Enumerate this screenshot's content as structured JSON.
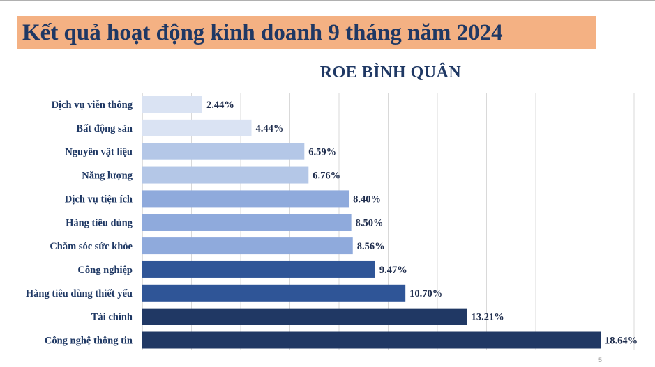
{
  "slide": {
    "title": "Kết quả hoạt động kinh doanh 9 tháng năm 2024",
    "page_number": "5"
  },
  "chart_data": {
    "type": "bar",
    "orientation": "horizontal",
    "title": "ROE BÌNH QUÂN",
    "xlabel": "",
    "ylabel": "",
    "unit": "%",
    "xlim": [
      0,
      20
    ],
    "grid": true,
    "legend": "none",
    "categories": [
      "Dịch vụ viễn thông",
      "Bất động sản",
      "Nguyên vật liệu",
      "Năng lượng",
      "Dịch vụ tiện ích",
      "Hàng tiêu dùng",
      "Chăm sóc sức khỏe",
      "Công nghiệp",
      "Hàng tiêu dùng thiết yếu",
      "Tài chính",
      "Công nghệ thông tin"
    ],
    "values": [
      2.44,
      4.44,
      6.59,
      6.76,
      8.4,
      8.5,
      8.56,
      9.47,
      10.7,
      13.21,
      18.64
    ],
    "value_labels": [
      "2.44%",
      "4.44%",
      "6.59%",
      "6.76%",
      "8.40%",
      "8.50%",
      "8.56%",
      "9.47%",
      "10.70%",
      "13.21%",
      "18.64%"
    ],
    "bar_colors": [
      "#dae3f3",
      "#dae3f3",
      "#b4c7e7",
      "#b4c7e7",
      "#8faadc",
      "#8faadc",
      "#8faadc",
      "#2f5597",
      "#2f5597",
      "#203864",
      "#203864"
    ],
    "colors": {
      "title": "#1f3864",
      "banner": "#f4b183",
      "grid": "#d9d9d9"
    }
  }
}
